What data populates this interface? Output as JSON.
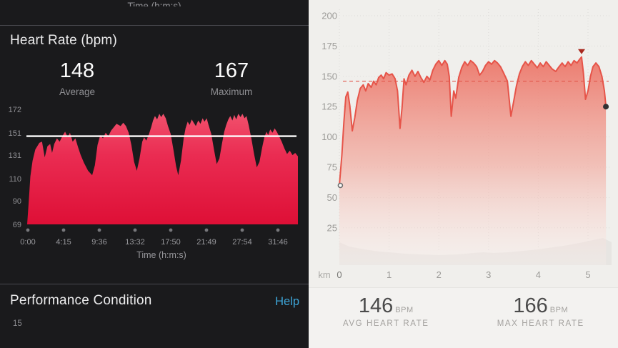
{
  "left_panel": {
    "top_axis_label_clipped": "Time (h:m:s)",
    "heart_rate_section": {
      "title": "Heart Rate (bpm)",
      "average": {
        "value": "148",
        "label": "Average"
      },
      "maximum": {
        "value": "167",
        "label": "Maximum"
      }
    },
    "performance_section": {
      "title": "Performance Condition",
      "help_label": "Help",
      "value": "15"
    }
  },
  "right_panel": {
    "stats": [
      {
        "value": "146",
        "unit": "BPM",
        "label": "AVG HEART RATE"
      },
      {
        "value": "166",
        "unit": "BPM",
        "label": "MAX HEART RATE"
      }
    ]
  },
  "colors": {
    "left_bg": "#1a1a1c",
    "left_divider": "#4a4a4f",
    "left_area_top": "#f2546f",
    "left_area_mid": "#ea2c52",
    "left_area_bottom": "#de0f36",
    "left_avg_line": "#ffffff",
    "axis_dot": "#77777b",
    "help_link": "#3ea6d9",
    "right_bg": "#f0efec",
    "right_line": "#e65449",
    "right_avg_dash": "#e0564a",
    "right_grid": "#dcdbd8",
    "elevation_fill": "#e7e5e2",
    "max_marker": "#a8281e",
    "end_dot": "#313133",
    "start_circle_stroke": "#6a6a6a"
  },
  "chart_data": [
    {
      "id": "left_heart_rate_time",
      "type": "area",
      "title": "Heart Rate (bpm)",
      "xlabel": "Time (h:m:s)",
      "x_tick_labels": [
        "0:00",
        "4:15",
        "9:36",
        "13:32",
        "17:50",
        "21:49",
        "27:54",
        "31:46"
      ],
      "x_ticks_evenly_spaced": true,
      "y_ticks": [
        69,
        90,
        110,
        131,
        151,
        172
      ],
      "ylim": [
        69,
        172
      ],
      "average_line": 148,
      "legend": "none",
      "grid": false,
      "series": [
        {
          "name": "heart_rate_bpm",
          "x_unit": "fraction_of_plot_width",
          "points": [
            [
              0,
              69
            ],
            [
              0.006,
              90
            ],
            [
              0.012,
              112
            ],
            [
              0.02,
              126
            ],
            [
              0.03,
              136
            ],
            [
              0.045,
              142
            ],
            [
              0.055,
              143
            ],
            [
              0.065,
              129
            ],
            [
              0.075,
              139
            ],
            [
              0.085,
              141
            ],
            [
              0.092,
              133
            ],
            [
              0.1,
              141
            ],
            [
              0.11,
              146
            ],
            [
              0.12,
              143
            ],
            [
              0.13,
              148
            ],
            [
              0.14,
              152
            ],
            [
              0.15,
              147
            ],
            [
              0.158,
              151
            ],
            [
              0.168,
              143
            ],
            [
              0.178,
              146
            ],
            [
              0.188,
              138
            ],
            [
              0.198,
              131
            ],
            [
              0.21,
              124
            ],
            [
              0.225,
              117
            ],
            [
              0.24,
              113
            ],
            [
              0.25,
              122
            ],
            [
              0.26,
              140
            ],
            [
              0.27,
              149
            ],
            [
              0.28,
              146
            ],
            [
              0.29,
              151
            ],
            [
              0.3,
              148
            ],
            [
              0.31,
              153
            ],
            [
              0.32,
              156
            ],
            [
              0.33,
              159
            ],
            [
              0.345,
              157
            ],
            [
              0.355,
              160
            ],
            [
              0.365,
              157
            ],
            [
              0.375,
              151
            ],
            [
              0.385,
              140
            ],
            [
              0.395,
              125
            ],
            [
              0.405,
              117
            ],
            [
              0.415,
              128
            ],
            [
              0.425,
              143
            ],
            [
              0.432,
              147
            ],
            [
              0.44,
              144
            ],
            [
              0.45,
              150
            ],
            [
              0.458,
              156
            ],
            [
              0.465,
              162
            ],
            [
              0.472,
              166
            ],
            [
              0.48,
              163
            ],
            [
              0.488,
              168
            ],
            [
              0.495,
              165
            ],
            [
              0.503,
              168
            ],
            [
              0.512,
              164
            ],
            [
              0.52,
              157
            ],
            [
              0.53,
              150
            ],
            [
              0.54,
              136
            ],
            [
              0.55,
              121
            ],
            [
              0.558,
              113
            ],
            [
              0.568,
              126
            ],
            [
              0.578,
              146
            ],
            [
              0.585,
              155
            ],
            [
              0.593,
              161
            ],
            [
              0.6,
              158
            ],
            [
              0.608,
              163
            ],
            [
              0.615,
              160
            ],
            [
              0.623,
              157
            ],
            [
              0.632,
              162
            ],
            [
              0.64,
              159
            ],
            [
              0.648,
              164
            ],
            [
              0.655,
              161
            ],
            [
              0.663,
              164
            ],
            [
              0.67,
              158
            ],
            [
              0.68,
              150
            ],
            [
              0.69,
              136
            ],
            [
              0.7,
              123
            ],
            [
              0.71,
              128
            ],
            [
              0.72,
              142
            ],
            [
              0.728,
              152
            ],
            [
              0.735,
              158
            ],
            [
              0.743,
              163
            ],
            [
              0.75,
              166
            ],
            [
              0.758,
              162
            ],
            [
              0.765,
              167
            ],
            [
              0.772,
              163
            ],
            [
              0.78,
              168
            ],
            [
              0.788,
              165
            ],
            [
              0.795,
              168
            ],
            [
              0.803,
              164
            ],
            [
              0.81,
              166
            ],
            [
              0.818,
              158
            ],
            [
              0.828,
              146
            ],
            [
              0.838,
              132
            ],
            [
              0.848,
              120
            ],
            [
              0.858,
              125
            ],
            [
              0.868,
              138
            ],
            [
              0.876,
              147
            ],
            [
              0.884,
              152
            ],
            [
              0.89,
              149
            ],
            [
              0.898,
              154
            ],
            [
              0.906,
              151
            ],
            [
              0.914,
              155
            ],
            [
              0.922,
              152
            ],
            [
              0.93,
              148
            ],
            [
              0.94,
              143
            ],
            [
              0.95,
              137
            ],
            [
              0.96,
              132
            ],
            [
              0.97,
              135
            ],
            [
              0.98,
              131
            ],
            [
              0.99,
              133
            ],
            [
              1,
              130
            ]
          ]
        }
      ]
    },
    {
      "id": "right_heart_rate_distance",
      "type": "area",
      "xlabel": "km",
      "x_ticks": [
        0,
        1,
        2,
        3,
        4,
        5
      ],
      "xlim": [
        0,
        5.5
      ],
      "y_ticks": [
        25,
        50,
        75,
        100,
        125,
        150,
        175,
        200
      ],
      "ylim": [
        0,
        200
      ],
      "average_dashed_line": 146,
      "grid": "dotted",
      "markers": {
        "start_open_circle": {
          "x": 0.02,
          "y": 60
        },
        "max_triangle": {
          "x": 4.87,
          "y": 166
        },
        "end_filled_dot": {
          "x": 5.36,
          "y": 125
        }
      },
      "series": [
        {
          "name": "heart_rate_bpm",
          "x_unit": "km",
          "points": [
            [
              0,
              60
            ],
            [
              0.05,
              85
            ],
            [
              0.09,
              112
            ],
            [
              0.13,
              133
            ],
            [
              0.17,
              137
            ],
            [
              0.21,
              126
            ],
            [
              0.26,
              105
            ],
            [
              0.31,
              116
            ],
            [
              0.36,
              130
            ],
            [
              0.42,
              140
            ],
            [
              0.48,
              143
            ],
            [
              0.53,
              138
            ],
            [
              0.58,
              144
            ],
            [
              0.64,
              141
            ],
            [
              0.69,
              146
            ],
            [
              0.74,
              143
            ],
            [
              0.79,
              149
            ],
            [
              0.84,
              151
            ],
            [
              0.89,
              148
            ],
            [
              0.94,
              153
            ],
            [
              1,
              151
            ],
            [
              1.06,
              152
            ],
            [
              1.12,
              148
            ],
            [
              1.17,
              138
            ],
            [
              1.22,
              107
            ],
            [
              1.26,
              124
            ],
            [
              1.3,
              148
            ],
            [
              1.34,
              143
            ],
            [
              1.4,
              151
            ],
            [
              1.46,
              155
            ],
            [
              1.52,
              150
            ],
            [
              1.58,
              154
            ],
            [
              1.64,
              149
            ],
            [
              1.7,
              145
            ],
            [
              1.76,
              150
            ],
            [
              1.82,
              147
            ],
            [
              1.88,
              155
            ],
            [
              1.94,
              160
            ],
            [
              2,
              163
            ],
            [
              2.06,
              159
            ],
            [
              2.12,
              163
            ],
            [
              2.17,
              160
            ],
            [
              2.21,
              150
            ],
            [
              2.25,
              117
            ],
            [
              2.3,
              138
            ],
            [
              2.34,
              132
            ],
            [
              2.4,
              149
            ],
            [
              2.46,
              157
            ],
            [
              2.52,
              162
            ],
            [
              2.58,
              159
            ],
            [
              2.64,
              163
            ],
            [
              2.7,
              161
            ],
            [
              2.76,
              158
            ],
            [
              2.82,
              151
            ],
            [
              2.88,
              154
            ],
            [
              2.94,
              159
            ],
            [
              3,
              162
            ],
            [
              3.06,
              160
            ],
            [
              3.12,
              163
            ],
            [
              3.18,
              161
            ],
            [
              3.24,
              158
            ],
            [
              3.3,
              153
            ],
            [
              3.38,
              146
            ],
            [
              3.45,
              117
            ],
            [
              3.5,
              128
            ],
            [
              3.56,
              142
            ],
            [
              3.62,
              152
            ],
            [
              3.68,
              158
            ],
            [
              3.74,
              162
            ],
            [
              3.8,
              159
            ],
            [
              3.86,
              163
            ],
            [
              3.92,
              160
            ],
            [
              3.98,
              157
            ],
            [
              4.04,
              161
            ],
            [
              4.1,
              158
            ],
            [
              4.16,
              162
            ],
            [
              4.22,
              159
            ],
            [
              4.28,
              156
            ],
            [
              4.35,
              154
            ],
            [
              4.42,
              158
            ],
            [
              4.48,
              161
            ],
            [
              4.54,
              158
            ],
            [
              4.6,
              162
            ],
            [
              4.66,
              159
            ],
            [
              4.72,
              163
            ],
            [
              4.78,
              161
            ],
            [
              4.83,
              164
            ],
            [
              4.87,
              166
            ],
            [
              4.91,
              152
            ],
            [
              4.95,
              131
            ],
            [
              5,
              138
            ],
            [
              5.05,
              150
            ],
            [
              5.1,
              158
            ],
            [
              5.16,
              161
            ],
            [
              5.22,
              158
            ],
            [
              5.28,
              150
            ],
            [
              5.33,
              138
            ],
            [
              5.36,
              125
            ]
          ]
        },
        {
          "name": "elevation_profile",
          "x_unit": "km",
          "points": [
            [
              0,
              15
            ],
            [
              0.2,
              12
            ],
            [
              0.5,
              10
            ],
            [
              0.8,
              8.5
            ],
            [
              1,
              8
            ],
            [
              1.3,
              7
            ],
            [
              1.6,
              6.5
            ],
            [
              2,
              6
            ],
            [
              2.4,
              6.5
            ],
            [
              2.7,
              7.5
            ],
            [
              2.9,
              8
            ],
            [
              3.1,
              7.5
            ],
            [
              3.4,
              8
            ],
            [
              3.7,
              9
            ],
            [
              4,
              10
            ],
            [
              4.3,
              11.5
            ],
            [
              4.6,
              13
            ],
            [
              4.9,
              15
            ],
            [
              5.1,
              16.5
            ],
            [
              5.3,
              18
            ],
            [
              5.42,
              16
            ],
            [
              5.5,
              15
            ]
          ]
        }
      ]
    }
  ]
}
